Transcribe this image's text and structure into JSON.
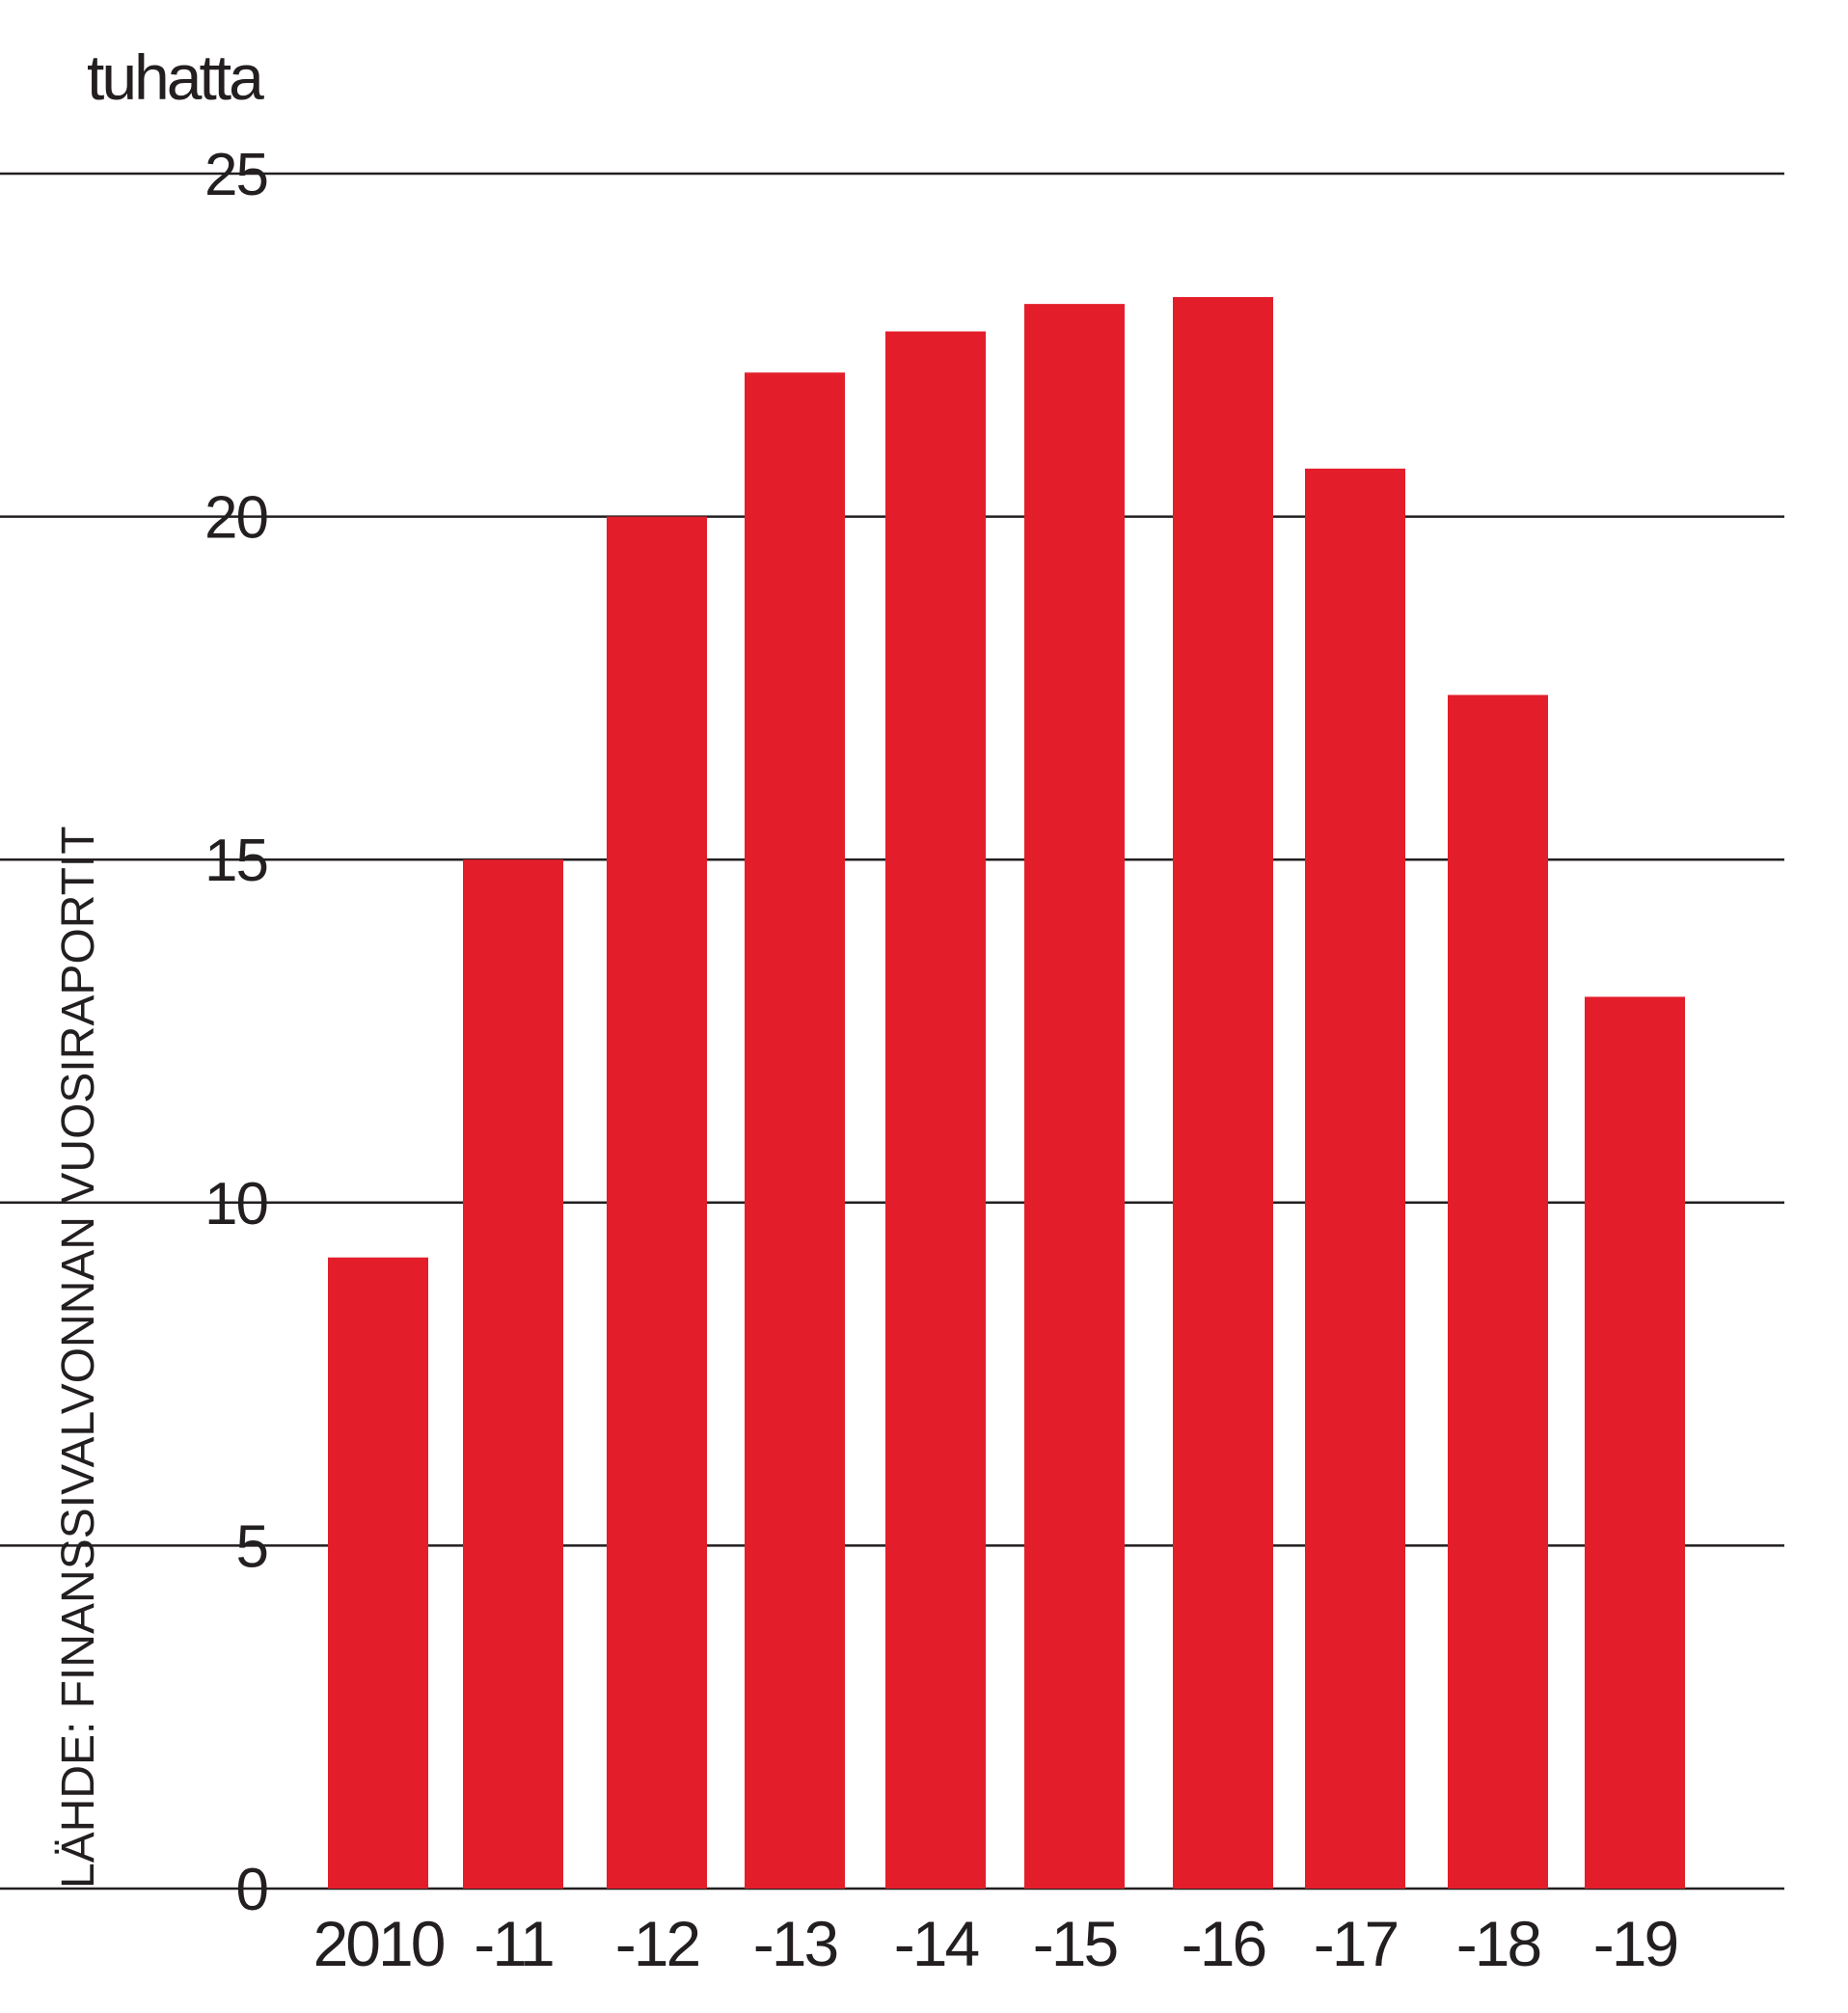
{
  "chart_data": {
    "type": "bar",
    "unit_label": "tuhatta",
    "source": "LÄHDE: FINANSSIVALVONNAN VUOSIRAPORTIT",
    "categories": [
      "2010",
      "-11",
      "-12",
      "-13",
      "-14",
      "-15",
      "-16",
      "-17",
      "-18",
      "-19"
    ],
    "values": [
      9.2,
      15.0,
      20.0,
      22.1,
      22.7,
      23.1,
      23.2,
      20.7,
      17.4,
      13.0
    ],
    "ylim": [
      0,
      25
    ],
    "yticks": [
      0,
      5,
      10,
      15,
      20,
      25
    ],
    "grid": true,
    "bar_color": "#e31e2a",
    "text_color": "#231f20"
  }
}
